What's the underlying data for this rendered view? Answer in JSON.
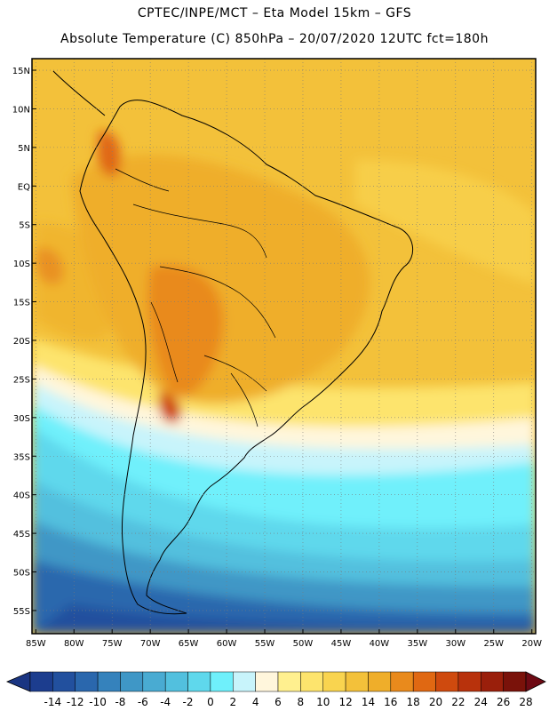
{
  "header": {
    "line1": "CPTEC/INPE/MCT –  Eta Model 15km – GFS",
    "line2": "Absolute Temperature (C) 850hPa – 20/07/2020 12UTC fct=180h"
  },
  "map": {
    "lat_labels": [
      "15N",
      "10N",
      "5N",
      "EQ",
      "5S",
      "10S",
      "15S",
      "20S",
      "25S",
      "30S",
      "35S",
      "40S",
      "45S",
      "50S",
      "55S"
    ],
    "lat_values": [
      15,
      10,
      5,
      0,
      -5,
      -10,
      -15,
      -20,
      -25,
      -30,
      -35,
      -40,
      -45,
      -50,
      -55
    ],
    "lon_labels": [
      "85W",
      "80W",
      "75W",
      "70W",
      "65W",
      "60W",
      "55W",
      "50W",
      "45W",
      "40W",
      "35W",
      "30W",
      "25W",
      "20W"
    ],
    "lon_values": [
      -85,
      -80,
      -75,
      -70,
      -65,
      -60,
      -55,
      -50,
      -45,
      -40,
      -35,
      -30,
      -25,
      -20
    ],
    "extent": {
      "lon_min": -85.5,
      "lon_max": -19.5,
      "lat_min": -58,
      "lat_max": 16.5
    }
  },
  "colorbar": {
    "labels": [
      "-14",
      "-12",
      "-10",
      "-8",
      "-6",
      "-4",
      "-2",
      "0",
      "2",
      "4",
      "6",
      "8",
      "10",
      "12",
      "14",
      "16",
      "18",
      "20",
      "22",
      "24",
      "26",
      "28"
    ],
    "colors": [
      "#1c3d8e",
      "#22509e",
      "#2a67ad",
      "#3582bc",
      "#3f97c6",
      "#49abd2",
      "#52c0de",
      "#5fd8ec",
      "#6ff0fb",
      "#c8f4fb",
      "#fff6dc",
      "#fff08f",
      "#fde46d",
      "#f9d44f",
      "#f3c13a",
      "#efae2a",
      "#e98a1c",
      "#e06812",
      "#cf4a0e",
      "#b8320c",
      "#9a1f0b",
      "#7a120a"
    ],
    "low_color": "#1a3582",
    "high_color": "#6e0a14"
  }
}
